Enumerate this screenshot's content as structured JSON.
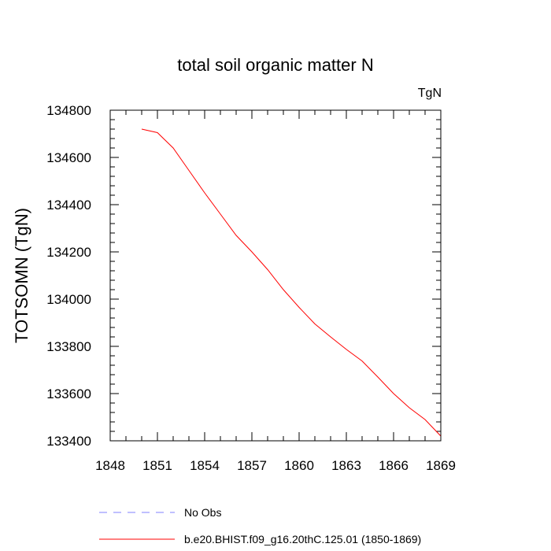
{
  "chart_data": {
    "type": "line",
    "title": "total soil organic matter N",
    "units_label": "TgN",
    "ylabel": "TOTSOMN  (TgN)",
    "xlabel": "",
    "xlim": [
      1848,
      1869
    ],
    "ylim": [
      133400,
      134800
    ],
    "x_ticks": [
      1848,
      1851,
      1854,
      1857,
      1860,
      1863,
      1866,
      1869
    ],
    "y_ticks": [
      133400,
      133600,
      133800,
      134000,
      134200,
      134400,
      134600,
      134800
    ],
    "grid": false,
    "legend_position": "bottom",
    "series": [
      {
        "name": "No Obs",
        "color": "#8080ff",
        "style": "dashed",
        "x": [],
        "values": []
      },
      {
        "name": "b.e20.BHIST.f09_g16.20thC.125.01 (1850-1869)",
        "color": "#ff0000",
        "style": "solid",
        "x": [
          1850,
          1851,
          1852,
          1853,
          1854,
          1855,
          1856,
          1857,
          1858,
          1859,
          1860,
          1861,
          1862,
          1863,
          1864,
          1865,
          1866,
          1867,
          1868,
          1869
        ],
        "values": [
          134720,
          134705,
          134640,
          134545,
          134450,
          134360,
          134270,
          134200,
          134125,
          134040,
          133965,
          133895,
          133840,
          133787,
          133738,
          133670,
          133600,
          133540,
          133490,
          133420
        ]
      }
    ]
  }
}
